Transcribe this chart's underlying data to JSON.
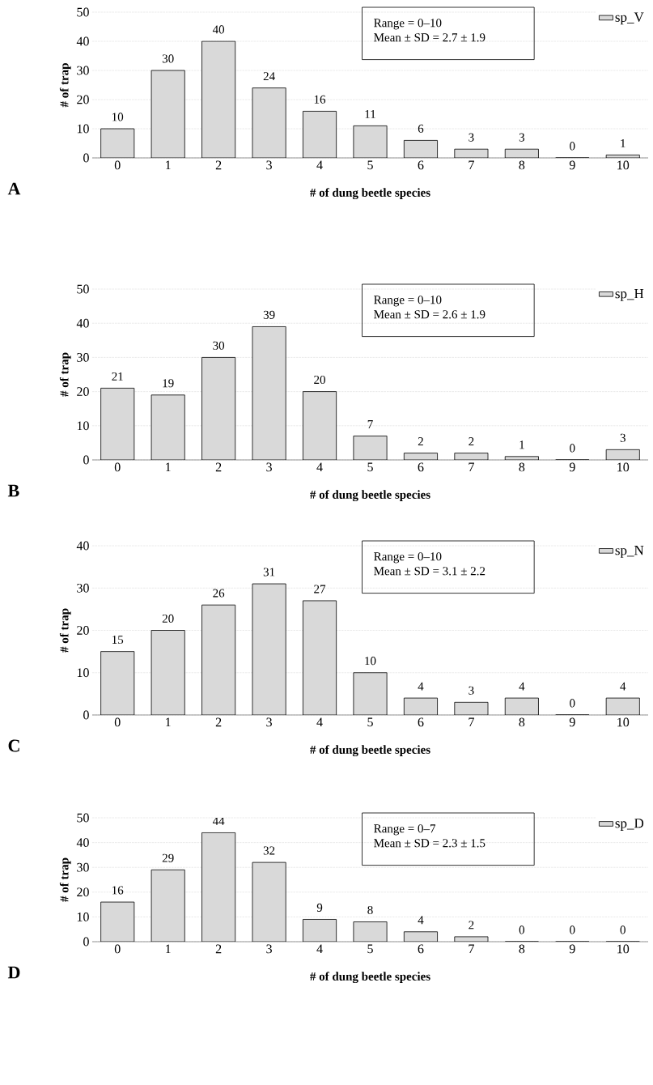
{
  "chart_data": [
    {
      "type": "bar",
      "categories": [
        "0",
        "1",
        "2",
        "3",
        "4",
        "5",
        "6",
        "7",
        "8",
        "9",
        "10"
      ],
      "xlabel": "# of dung beetle species",
      "ylabel": "# of trap",
      "ylim": [
        0,
        50
      ],
      "yticks": [
        0,
        10,
        20,
        30,
        40,
        50
      ],
      "grid": "y",
      "legend": "top right",
      "data_labels": true,
      "annotations": [
        "A",
        "Range = 0–10",
        "Mean ± SD = 2.7 ± 1.9"
      ],
      "series": [
        {
          "name": "sp_V",
          "color": "#d9d9d9",
          "values": [
            10,
            30,
            40,
            24,
            16,
            11,
            6,
            3,
            3,
            0,
            1
          ]
        }
      ]
    },
    {
      "type": "bar",
      "categories": [
        "0",
        "1",
        "2",
        "3",
        "4",
        "5",
        "6",
        "7",
        "8",
        "9",
        "10"
      ],
      "xlabel": "# of dung beetle species",
      "ylabel": "# of trap",
      "ylim": [
        0,
        50
      ],
      "yticks": [
        0,
        10,
        20,
        30,
        40,
        50
      ],
      "grid": "y",
      "legend": "top right",
      "data_labels": true,
      "annotations": [
        "B",
        "Range = 0–10",
        "Mean ± SD = 2.6 ± 1.9"
      ],
      "series": [
        {
          "name": "sp_H",
          "color": "#d9d9d9",
          "values": [
            21,
            19,
            30,
            39,
            20,
            7,
            2,
            2,
            1,
            0,
            3
          ]
        }
      ]
    },
    {
      "type": "bar",
      "categories": [
        "0",
        "1",
        "2",
        "3",
        "4",
        "5",
        "6",
        "7",
        "8",
        "9",
        "10"
      ],
      "xlabel": "# of dung beetle species",
      "ylabel": "# of trap",
      "ylim": [
        0,
        40
      ],
      "yticks": [
        0,
        10,
        20,
        30,
        40
      ],
      "grid": "y",
      "legend": "top right",
      "data_labels": true,
      "annotations": [
        "C",
        "Range = 0–10",
        "Mean ± SD = 3.1 ± 2.2"
      ],
      "series": [
        {
          "name": "sp_N",
          "color": "#d9d9d9",
          "values": [
            15,
            20,
            26,
            31,
            27,
            10,
            4,
            3,
            4,
            0,
            4
          ]
        }
      ]
    },
    {
      "type": "bar",
      "categories": [
        "0",
        "1",
        "2",
        "3",
        "4",
        "5",
        "6",
        "7",
        "8",
        "9",
        "10"
      ],
      "xlabel": "# of dung beetle species",
      "ylabel": "# of trap",
      "ylim": [
        0,
        50
      ],
      "yticks": [
        0,
        10,
        20,
        30,
        40,
        50
      ],
      "grid": "y",
      "legend": "top right",
      "data_labels": true,
      "annotations": [
        "D",
        "Range = 0–7",
        "Mean ± SD = 2.3 ± 1.5"
      ],
      "series": [
        {
          "name": "sp_D",
          "color": "#d9d9d9",
          "values": [
            16,
            29,
            44,
            32,
            9,
            8,
            4,
            2,
            0,
            0,
            0
          ]
        }
      ]
    }
  ]
}
